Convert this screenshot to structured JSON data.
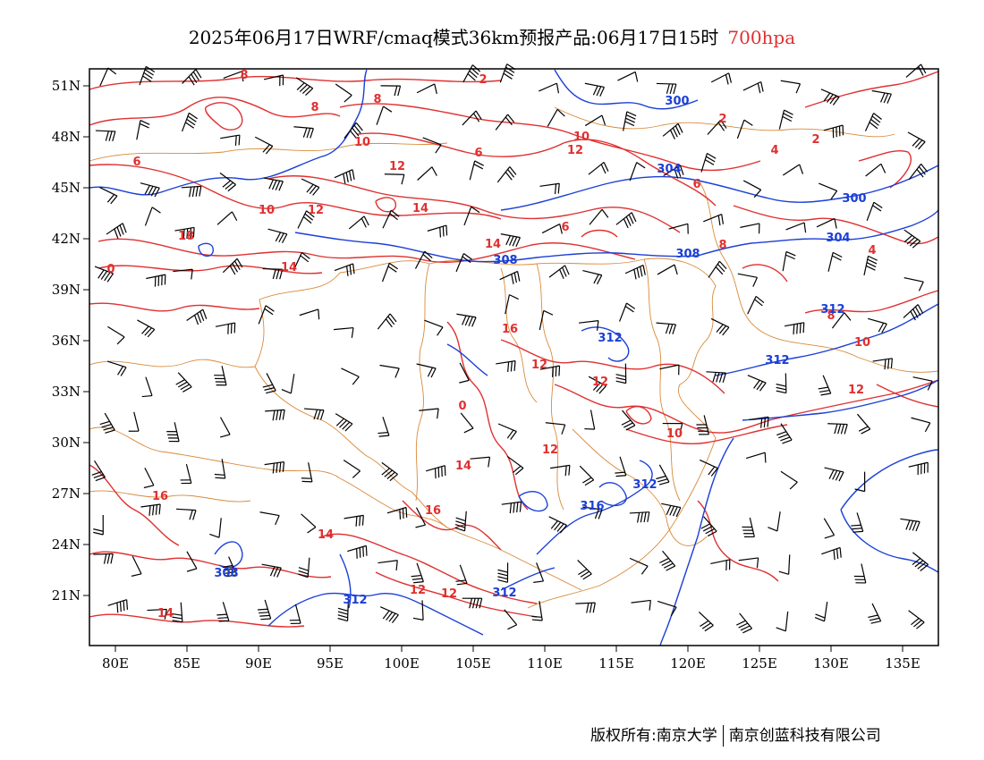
{
  "header": {
    "title": "2025年06月17日WRF/cmaq模式36km预报产品:06月17日15时",
    "level": "700hpa"
  },
  "colors": {
    "temperature": "#e03030",
    "geopotential": "#1a3fd6",
    "boundary": "#d98a3a",
    "wind": "#000000",
    "level_text": "#e03030"
  },
  "map": {
    "lon_ticks": [
      "80E",
      "85E",
      "90E",
      "95E",
      "100E",
      "105E",
      "110E",
      "115E",
      "120E",
      "125E",
      "130E",
      "135E"
    ],
    "lat_ticks": [
      "51N",
      "48N",
      "45N",
      "42N",
      "39N",
      "36N",
      "33N",
      "30N",
      "27N",
      "24N",
      "21N"
    ],
    "lon_values": [
      80,
      85,
      90,
      95,
      100,
      105,
      110,
      115,
      120,
      125,
      130,
      135
    ],
    "lat_values": [
      51,
      48,
      45,
      42,
      39,
      36,
      33,
      30,
      27,
      24,
      21
    ],
    "temp_labels": [
      "2",
      "2",
      "2",
      "4",
      "4",
      "6",
      "6",
      "6",
      "6",
      "8",
      "8",
      "8",
      "8",
      "8",
      "10",
      "10",
      "10",
      "10",
      "10",
      "12",
      "12",
      "12",
      "12",
      "12",
      "12",
      "12",
      "14",
      "14",
      "14",
      "14",
      "14",
      "14",
      "16",
      "16",
      "16",
      "18",
      "0",
      "0",
      "12",
      "12"
    ],
    "height_labels": [
      "300",
      "300",
      "304",
      "304",
      "308",
      "308",
      "308",
      "312",
      "312",
      "312",
      "312",
      "312",
      "312",
      "316"
    ]
  },
  "footer": {
    "left": "版权所有:南京大学",
    "right": "南京创蓝科技有限公司"
  }
}
